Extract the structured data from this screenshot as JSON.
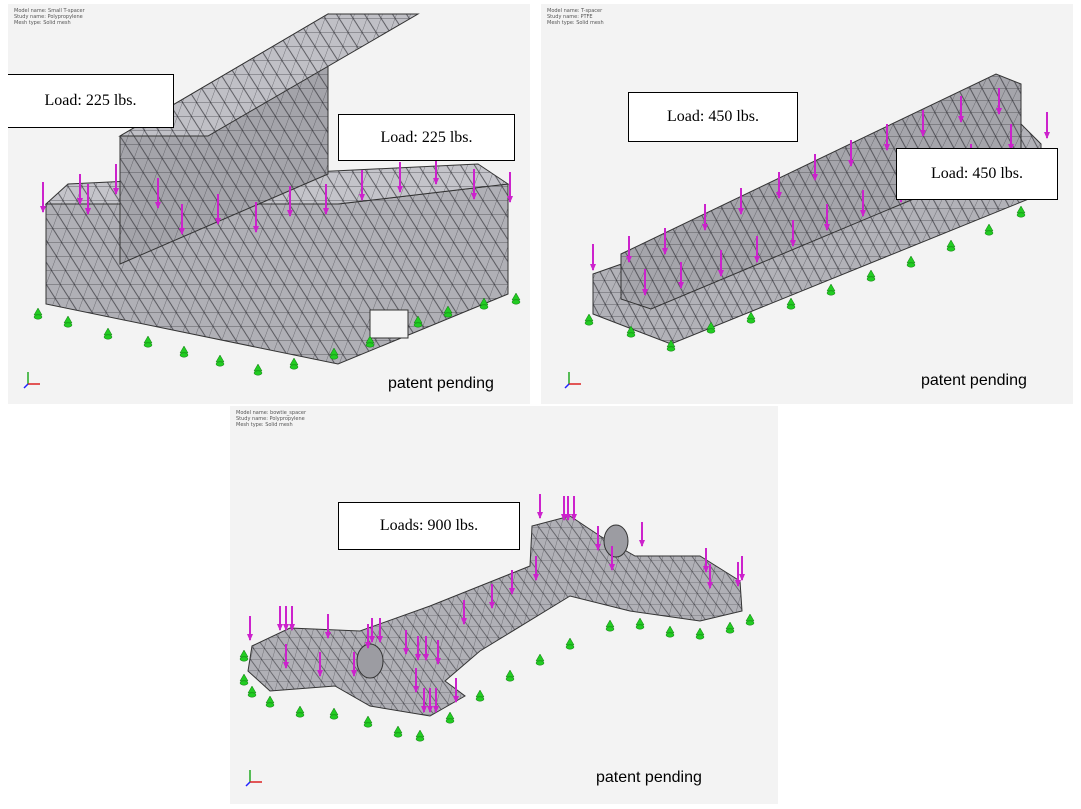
{
  "panels": [
    {
      "model_name": "Model name: Small T-spacer",
      "study_name": "Study name: Polypropylene",
      "mesh_type": "Mesh type: Solid mesh",
      "callouts": [
        "Load: 225 lbs.",
        "Load: 225 lbs."
      ],
      "footer": "patent pending"
    },
    {
      "model_name": "Model name: T-spacer",
      "study_name": "Study name: PTFE",
      "mesh_type": "Mesh type: Solid mesh",
      "callouts": [
        "Load: 450 lbs.",
        "Load: 450 lbs."
      ],
      "footer": "patent pending"
    },
    {
      "model_name": "Model name: bowtie_spacer",
      "study_name": "Study name: Polypropylene",
      "mesh_type": "Mesh type: Solid mesh",
      "callouts": [
        "Loads: 900 lbs."
      ],
      "footer": "patent pending"
    }
  ],
  "colors": {
    "load_arrow": "#cc22cc",
    "fixture": "#22cc22",
    "mesh_fill": "#a7a7ad",
    "mesh_line": "#3a3a40",
    "background": "#f3f3f3"
  },
  "icons": [
    "load-arrow-icon",
    "fixture-icon",
    "axis-triad-icon"
  ]
}
